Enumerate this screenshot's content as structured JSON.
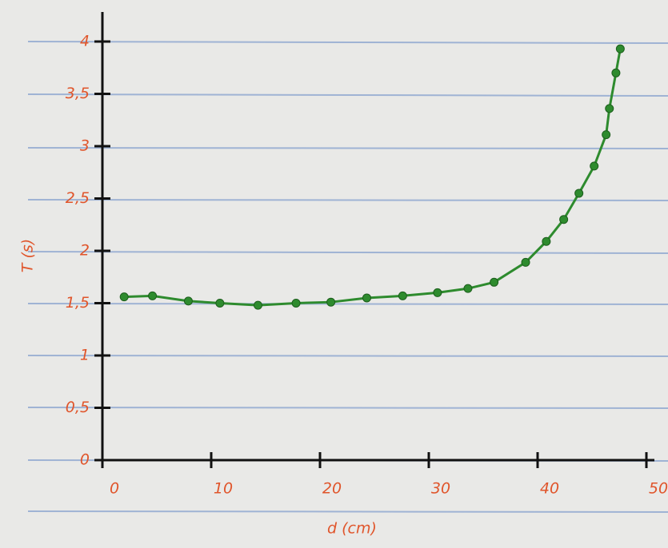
{
  "chart_data": {
    "type": "scatter",
    "line": true,
    "x_label": "d (cm)",
    "y_label": "T (s)",
    "color": "#2e8b2e",
    "axis_color": "#111111",
    "label_color": "#e0552b",
    "x": [
      2.0,
      4.6,
      7.9,
      10.8,
      14.3,
      17.8,
      21.0,
      24.3,
      27.6,
      30.8,
      33.6,
      36.0,
      38.9,
      40.8,
      42.4,
      43.8,
      45.2,
      46.3,
      46.6,
      47.2,
      47.6
    ],
    "values": [
      1.56,
      1.57,
      1.52,
      1.5,
      1.48,
      1.5,
      1.51,
      1.55,
      1.57,
      1.6,
      1.64,
      1.7,
      1.89,
      2.09,
      2.3,
      2.55,
      2.81,
      3.11,
      3.36,
      3.7,
      3.93
    ],
    "xlim": [
      0,
      50
    ],
    "xticks": [
      0,
      10,
      20,
      30,
      40,
      50
    ],
    "ylim": [
      0,
      4
    ],
    "yticks": [
      0,
      {
        "value": 0.5,
        "label": "0,5"
      },
      1,
      {
        "value": 1.5,
        "label": "1,5"
      },
      2,
      {
        "value": 2.5,
        "label": "2,5"
      },
      3,
      {
        "value": 3.5,
        "label": "3,5"
      },
      4
    ]
  }
}
